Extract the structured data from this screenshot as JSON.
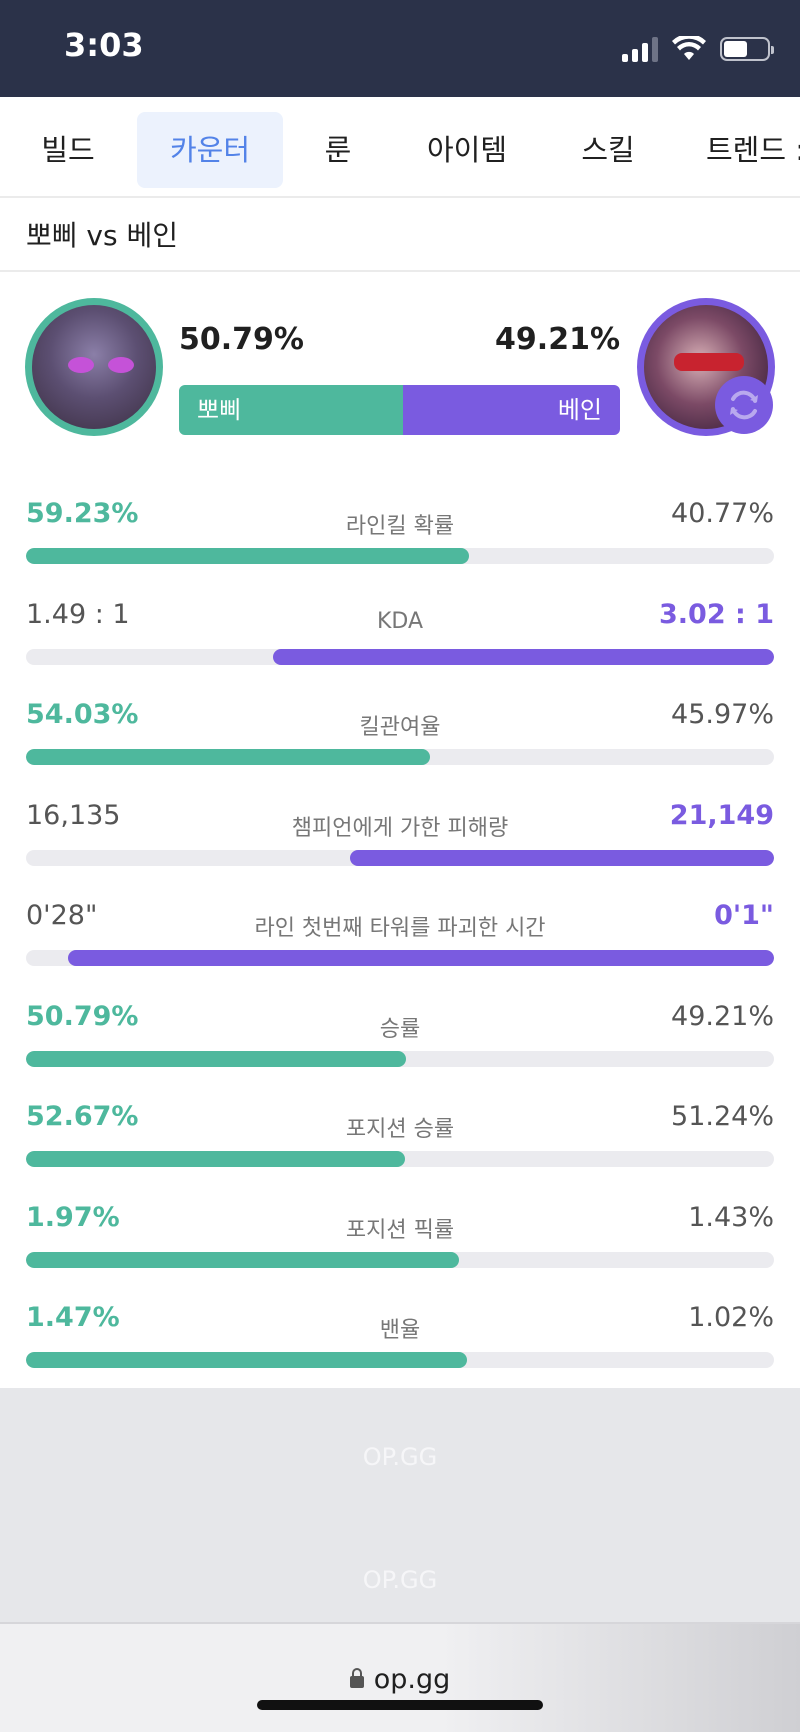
{
  "status_bar": {
    "time": "3:03",
    "battery_level": 0.55
  },
  "tabs": [
    {
      "label": "빌드",
      "active": false
    },
    {
      "label": "카운터",
      "active": true
    },
    {
      "label": "룬",
      "active": false
    },
    {
      "label": "아이템",
      "active": false
    },
    {
      "label": "스킬",
      "active": false
    },
    {
      "label": "트렌드 :",
      "active": false
    }
  ],
  "matchup": {
    "title": "뽀삐 vs 베인",
    "left": {
      "name": "뽀삐",
      "win_rate": "50.79%",
      "win_fraction": 0.5079,
      "color": "#4eb89d"
    },
    "right": {
      "name": "베인",
      "win_rate": "49.21%",
      "color": "#7a5be0"
    }
  },
  "stats": [
    {
      "label": "라인킬 확률",
      "left": "59.23%",
      "right": "40.77%",
      "winner": "left",
      "fill": 0.5923
    },
    {
      "label": "KDA",
      "left": "1.49 : 1",
      "right": "3.02 : 1",
      "winner": "right",
      "fill": 0.67
    },
    {
      "label": "킬관여율",
      "left": "54.03%",
      "right": "45.97%",
      "winner": "left",
      "fill": 0.5403
    },
    {
      "label": "챔피언에게 가한 피해량",
      "left": "16,135",
      "right": "21,149",
      "winner": "right",
      "fill": 0.567
    },
    {
      "label": "라인 첫번째 타워를 파괴한 시간",
      "left": "0'28\"",
      "right": "0'1\"",
      "winner": "right",
      "fill": 0.944
    },
    {
      "label": "승률",
      "left": "50.79%",
      "right": "49.21%",
      "winner": "left",
      "fill": 0.508
    },
    {
      "label": "포지션 승률",
      "left": "52.67%",
      "right": "51.24%",
      "winner": "left",
      "fill": 0.507
    },
    {
      "label": "포지션 픽률",
      "left": "1.97%",
      "right": "1.43%",
      "winner": "left",
      "fill": 0.579
    },
    {
      "label": "밴율",
      "left": "1.47%",
      "right": "1.02%",
      "winner": "left",
      "fill": 0.59
    }
  ],
  "footer": {
    "watermarks": [
      "OP.GG",
      "OP.GG"
    ],
    "url": "op.gg"
  }
}
